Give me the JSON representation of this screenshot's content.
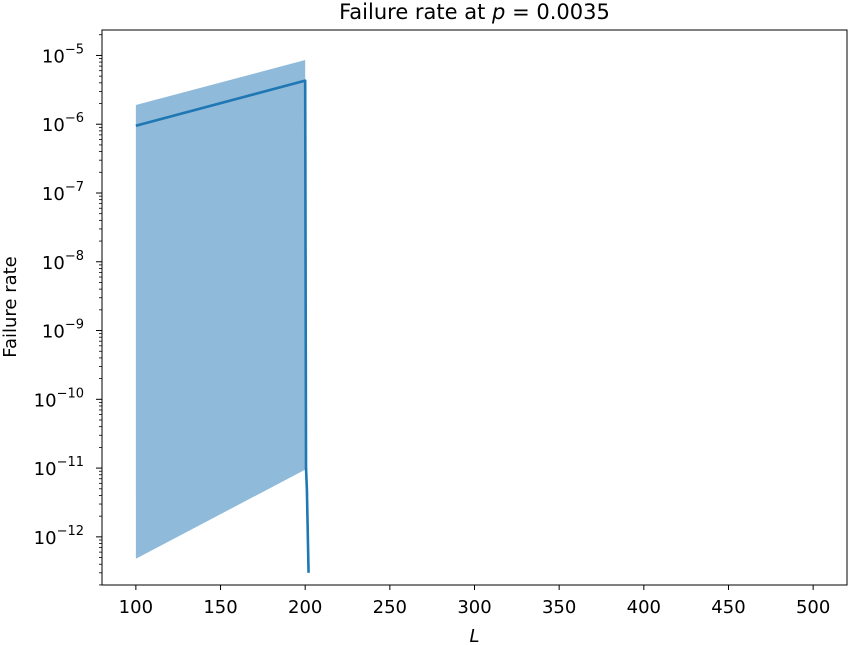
{
  "chart_data": {
    "type": "line",
    "title": {
      "prefix": "Failure rate at ",
      "var": "p",
      "suffix": " = 0.0035"
    },
    "xlabel": "L",
    "ylabel": "Failure rate",
    "xlim": [
      80,
      520
    ],
    "ylim_log10": [
      -12.7,
      -4.63
    ],
    "yscale": "log",
    "grid": false,
    "legend": "none",
    "x_ticks": [
      100,
      150,
      200,
      250,
      300,
      350,
      400,
      450,
      500
    ],
    "y_ticks": [
      {
        "exp": -12,
        "base": "10",
        "label": "−12"
      },
      {
        "exp": -11,
        "base": "10",
        "label": "−11"
      },
      {
        "exp": -10,
        "base": "10",
        "label": "−10"
      },
      {
        "exp": -9,
        "base": "10",
        "label": "−9"
      },
      {
        "exp": -8,
        "base": "10",
        "label": "−8"
      },
      {
        "exp": -7,
        "base": "10",
        "label": "−7"
      },
      {
        "exp": -6,
        "base": "10",
        "label": "−6"
      },
      {
        "exp": -5,
        "base": "10",
        "label": "−5"
      }
    ],
    "series": [
      {
        "color": "#1f77b4",
        "band_color": "#8fbad9",
        "x": [
          100,
          200,
          200.5,
          201,
          202
        ],
        "y": [
          9.5e-07,
          4.3e-06,
          1e-11,
          5e-12,
          3e-13
        ],
        "band_x": [
          100,
          200
        ],
        "band_upper": [
          1.9e-06,
          8.6e-06
        ],
        "band_lower": [
          4.8e-13,
          9.5e-12
        ]
      }
    ]
  }
}
